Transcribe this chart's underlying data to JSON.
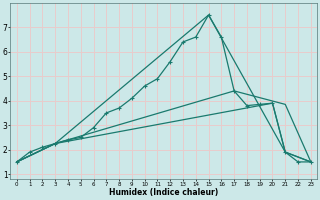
{
  "title": "",
  "xlabel": "Humidex (Indice chaleur)",
  "background_color": "#cce8e8",
  "grid_color": "#e8cccc",
  "line_color": "#1a7a6e",
  "xlim": [
    -0.5,
    23.5
  ],
  "ylim": [
    0.8,
    8.0
  ],
  "yticks": [
    1,
    2,
    3,
    4,
    5,
    6,
    7
  ],
  "xticks": [
    0,
    1,
    2,
    3,
    4,
    5,
    6,
    7,
    8,
    9,
    10,
    11,
    12,
    13,
    14,
    15,
    16,
    17,
    18,
    19,
    20,
    21,
    22,
    23
  ],
  "series1_x": [
    0,
    1,
    2,
    3,
    4,
    5,
    6,
    7,
    8,
    9,
    10,
    11,
    12,
    13,
    14,
    15,
    16,
    17,
    18,
    19,
    20,
    21,
    22,
    23
  ],
  "series1_y": [
    1.5,
    1.9,
    2.1,
    2.25,
    2.4,
    2.5,
    2.9,
    3.5,
    3.7,
    4.1,
    4.6,
    4.9,
    5.6,
    6.4,
    6.6,
    7.5,
    6.6,
    4.4,
    3.8,
    3.85,
    3.9,
    1.9,
    1.5,
    1.5
  ],
  "series2_x": [
    0,
    3,
    15,
    21,
    23
  ],
  "series2_y": [
    1.5,
    2.25,
    7.5,
    1.9,
    1.5
  ],
  "series3_x": [
    0,
    3,
    20,
    21,
    23
  ],
  "series3_y": [
    1.5,
    2.25,
    3.9,
    1.9,
    1.5
  ],
  "series4_x": [
    0,
    3,
    17,
    21,
    23
  ],
  "series4_y": [
    1.5,
    2.25,
    4.4,
    3.85,
    1.5
  ],
  "marker": "+",
  "markersize": 3.5,
  "linewidth": 0.9
}
